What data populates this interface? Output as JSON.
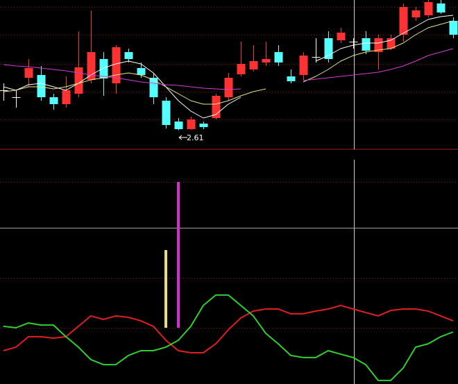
{
  "chart_data": [
    {
      "type": "candlestick",
      "open": [
        2.84,
        2.8,
        2.912,
        2.928,
        2.8,
        2.76,
        2.82,
        2.9,
        3.02,
        2.88,
        3.06,
        2.968,
        2.912,
        2.78,
        2.66,
        2.616,
        2.648,
        2.68,
        2.8,
        2.932,
        2.96,
        3.0,
        3.06,
        2.92,
        2.928,
        3.032,
        3.14,
        3.128,
        3.12,
        3.14,
        3.06,
        3.08,
        3.16,
        3.26,
        3.272,
        3.34,
        3.24
      ],
      "high": [
        2.88,
        2.84,
        3.02,
        2.98,
        2.82,
        2.92,
        3.18,
        3.3,
        3.06,
        3.1,
        3.08,
        3.0,
        2.94,
        2.8,
        2.68,
        2.688,
        2.66,
        2.82,
        2.94,
        3.12,
        3.1,
        3.12,
        3.1,
        2.96,
        3.06,
        3.14,
        3.18,
        3.2,
        3.14,
        3.18,
        3.16,
        3.16,
        3.34,
        3.32,
        3.36,
        3.36,
        3.26
      ],
      "low": [
        2.78,
        2.74,
        2.86,
        2.78,
        2.728,
        2.74,
        2.8,
        2.88,
        2.808,
        2.82,
        3.0,
        2.912,
        2.76,
        2.62,
        2.61,
        2.612,
        2.616,
        2.672,
        2.78,
        2.92,
        2.948,
        2.98,
        2.98,
        2.88,
        2.9,
        3.0,
        3.0,
        3.112,
        3.08,
        3.048,
        2.96,
        3.072,
        3.12,
        3.24,
        3.26,
        3.28,
        3.14
      ],
      "close": [
        2.84,
        2.8,
        2.968,
        2.8,
        2.76,
        2.84,
        2.972,
        3.06,
        2.908,
        3.088,
        3.02,
        2.928,
        2.8,
        2.64,
        2.616,
        2.672,
        2.628,
        2.808,
        2.912,
        2.992,
        3.008,
        3.02,
        3.0,
        2.892,
        3.04,
        3.032,
        3.02,
        3.172,
        3.12,
        3.068,
        3.14,
        3.14,
        3.32,
        3.3,
        3.348,
        3.288,
        3.16
      ],
      "up_color": "#ff3232",
      "down_color": "#54ffff",
      "flat_color": "#ffffff",
      "series": [
        {
          "color": "#ffffff",
          "values": [
            2.86,
            2.84,
            2.872,
            2.88,
            2.86,
            2.84,
            2.88,
            2.928,
            2.968,
            2.992,
            3.008,
            2.992,
            2.94,
            2.86,
            2.78,
            2.72,
            2.68,
            2.7,
            2.76,
            2.8,
            null,
            null,
            null,
            null,
            null,
            3.008,
            3.04,
            3.08,
            3.1,
            3.112,
            3.112,
            3.128,
            3.168,
            3.208,
            3.248,
            3.264,
            3.272
          ]
        },
        {
          "color": "#e8e68a",
          "values": [
            2.832,
            2.84,
            2.86,
            2.86,
            2.848,
            2.86,
            2.88,
            2.9,
            2.912,
            2.928,
            2.94,
            2.928,
            2.9,
            2.86,
            2.82,
            2.78,
            2.76,
            2.76,
            2.78,
            2.808,
            2.832,
            2.848,
            null,
            null,
            2.888,
            2.92,
            2.96,
            3.008,
            3.04,
            3.06,
            3.072,
            3.08,
            3.112,
            3.16,
            3.2,
            3.22,
            3.24
          ]
        },
        {
          "color": "#d63cd6",
          "values": [
            2.988,
            2.98,
            2.976,
            2.968,
            2.96,
            2.952,
            2.94,
            2.928,
            2.92,
            2.912,
            2.9,
            2.888,
            2.88,
            2.872,
            2.868,
            2.86,
            2.852,
            2.848,
            2.844,
            2.848,
            null,
            null,
            null,
            null,
            2.896,
            2.904,
            2.912,
            2.92,
            2.928,
            2.936,
            2.944,
            2.96,
            2.98,
            3.008,
            3.04,
            3.06,
            3.08
          ]
        }
      ],
      "low_label": "2.61",
      "ylim": [
        2.5,
        3.36
      ],
      "yticks": [
        2.672,
        2.832,
        2.992,
        3.16,
        3.32
      ],
      "grid": true
    },
    {
      "type": "line",
      "series": [
        {
          "color": "#e02020",
          "values": [
            15,
            16.7,
            21.7,
            21.7,
            21,
            21.7,
            26.7,
            31.7,
            30,
            31.7,
            31,
            29.3,
            26.7,
            20,
            15,
            14,
            14,
            18.3,
            25,
            30.7,
            34,
            35,
            35,
            32.7,
            32.7,
            34,
            35,
            36.7,
            35,
            33.3,
            31.7,
            34.3,
            35,
            35,
            34,
            31.7,
            29.3
          ]
        },
        {
          "color": "#30d030",
          "values": [
            26.7,
            26,
            28.3,
            27.3,
            27.3,
            21.7,
            16.7,
            10.7,
            8.3,
            8.3,
            12.7,
            15,
            15,
            16.7,
            20,
            26.7,
            36.7,
            41.7,
            41.7,
            36.7,
            31.7,
            23.3,
            18.3,
            12.7,
            11.7,
            11.7,
            15,
            13.3,
            11.7,
            8.3,
            0.7,
            0.7,
            6.7,
            16.7,
            18.3,
            21.7,
            24
          ]
        }
      ],
      "bars": [
        {
          "color": "#e8e070",
          "values": [
            null,
            null,
            null,
            null,
            null,
            null,
            null,
            null,
            null,
            null,
            null,
            null,
            null,
            [
              26,
              63.3
            ],
            null,
            null,
            null,
            null,
            null,
            null,
            null,
            null,
            null,
            null,
            null,
            null,
            null,
            null,
            null,
            null,
            null,
            null,
            null,
            null,
            null,
            null,
            null
          ]
        },
        {
          "color": "#d030d0",
          "values": [
            null,
            null,
            null,
            null,
            null,
            null,
            null,
            null,
            null,
            null,
            null,
            null,
            null,
            null,
            [
              26,
              96
            ],
            null,
            null,
            null,
            null,
            null,
            null,
            null,
            null,
            null,
            null,
            null,
            null,
            null,
            null,
            null,
            null,
            null,
            null,
            null,
            null,
            null,
            null,
            null
          ]
        }
      ],
      "ylim": [
        0,
        100
      ],
      "yticks": [
        26,
        50,
        96
      ],
      "grid": true
    }
  ]
}
